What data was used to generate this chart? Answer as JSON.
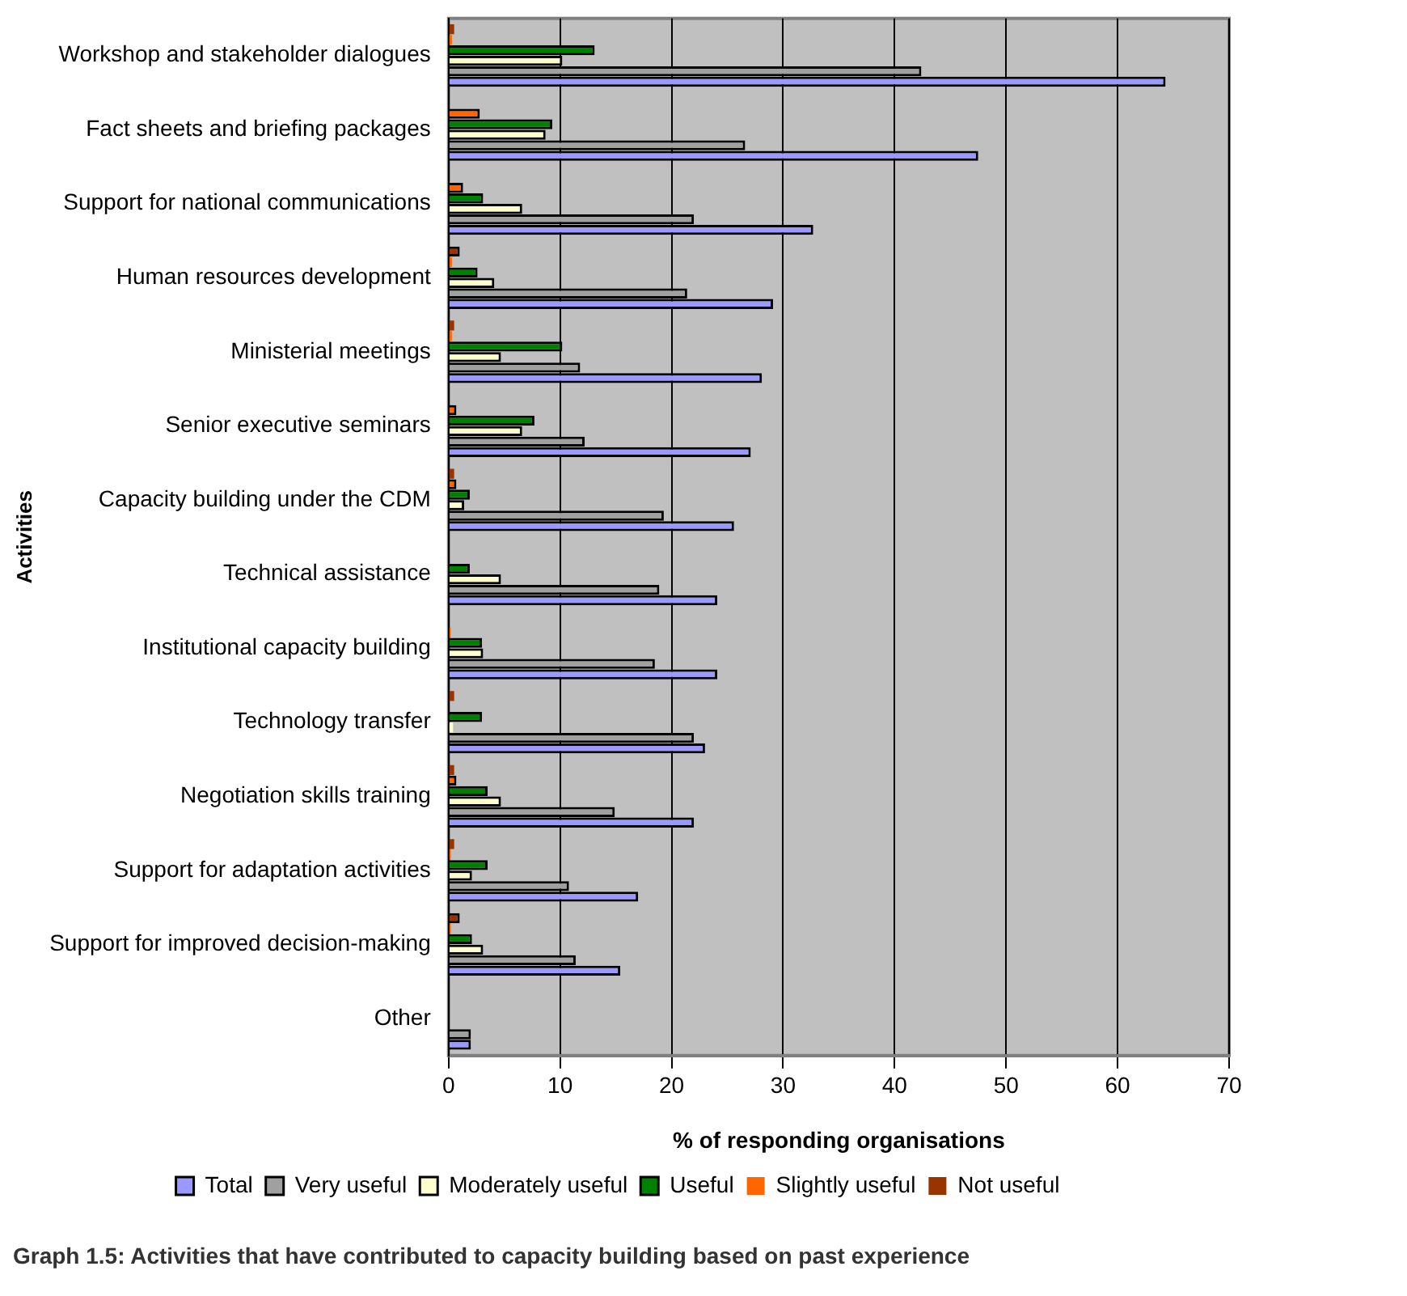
{
  "chart_data": {
    "type": "bar",
    "orientation": "horizontal",
    "title": "Graph 1.5: Activities that have contributed to capacity building based on past experience",
    "xlabel": "% of responding organisations",
    "ylabel": "Activities",
    "categories": [
      "Workshop and stakeholder dialogues",
      "Fact sheets and briefing packages",
      "Support for national communications",
      "Human resources development",
      "Ministerial meetings",
      "Senior executive seminars",
      "Capacity building under the CDM",
      "Technical assistance",
      "Institutional capacity building",
      "Technology transfer",
      "Negotiation skills training",
      "Support for adaptation activities",
      "Support for improved decision-making",
      "Other"
    ],
    "series": [
      {
        "name": "Total",
        "color": "#9999ff",
        "values": [
          64.3,
          47.5,
          32.7,
          29.1,
          28.1,
          27.1,
          25.6,
          24.1,
          24.1,
          23.0,
          22.0,
          17.0,
          15.4,
          2.0
        ]
      },
      {
        "name": "Very useful",
        "color": "#a0a0a0",
        "values": [
          42.4,
          26.6,
          22.0,
          21.4,
          11.8,
          12.2,
          19.3,
          18.9,
          18.5,
          22.0,
          14.9,
          10.8,
          11.4,
          2.0
        ]
      },
      {
        "name": "Moderately useful",
        "color": "#ffffcc",
        "values": [
          10.2,
          8.7,
          6.6,
          4.1,
          4.7,
          6.6,
          1.4,
          4.7,
          3.1,
          0.4,
          4.7,
          2.1,
          3.1,
          0
        ]
      },
      {
        "name": "Useful",
        "color": "#008000",
        "values": [
          13.1,
          9.3,
          3.1,
          2.6,
          10.2,
          7.7,
          1.9,
          1.9,
          3.0,
          3.0,
          3.5,
          3.5,
          2.1,
          0
        ]
      },
      {
        "name": "Slightly useful",
        "color": "#ff6600",
        "values": [
          0.3,
          2.8,
          1.3,
          0.3,
          0.3,
          0.7,
          0.7,
          0,
          0.2,
          0,
          0.7,
          0.2,
          0.2,
          0
        ]
      },
      {
        "name": "Not useful",
        "color": "#993300",
        "values": [
          0.5,
          0,
          0,
          1.0,
          0.5,
          0,
          0.5,
          0,
          0,
          0.5,
          0.5,
          0.5,
          1.0,
          0
        ]
      }
    ],
    "xlim": [
      0,
      70
    ],
    "xticks": [
      0,
      10,
      20,
      30,
      40,
      50,
      60,
      70
    ],
    "grid": "x",
    "legend": "bottom"
  }
}
